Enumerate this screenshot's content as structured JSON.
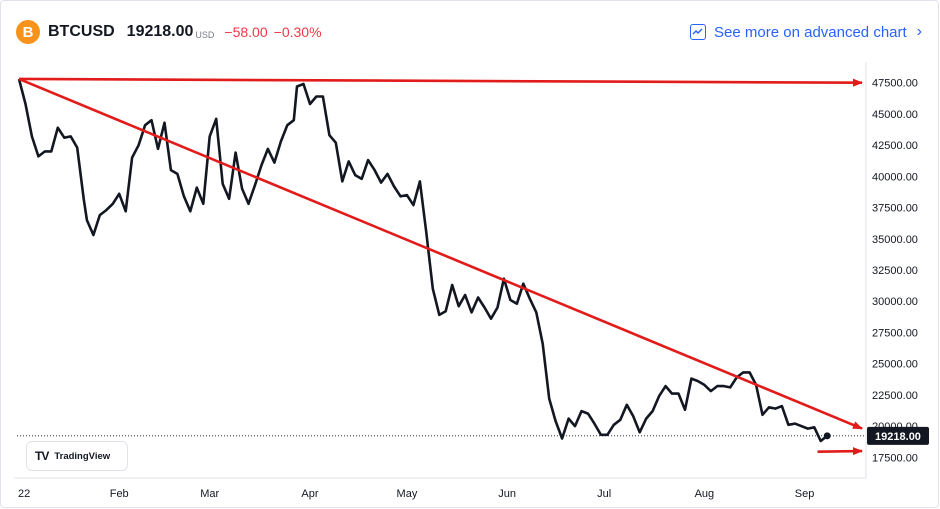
{
  "header": {
    "coin_icon_glyph": "B",
    "symbol": "BTCUSD",
    "last_price": "19218.00",
    "currency": "USD",
    "change": "−58.00",
    "change_pct": "−0.30%",
    "change_color": "#f23645"
  },
  "advanced_link": {
    "label": "See more on advanced chart",
    "icon": "chart-line-icon"
  },
  "badge": {
    "logo": "TV",
    "label": "TradingView"
  },
  "chart_data": {
    "type": "line",
    "series": [
      {
        "color": "#131722",
        "points": [
          [
            "2022-01-01",
            47800
          ],
          [
            "2022-01-03",
            45800
          ],
          [
            "2022-01-05",
            43200
          ],
          [
            "2022-01-07",
            41600
          ],
          [
            "2022-01-09",
            42000
          ],
          [
            "2022-01-11",
            42000
          ],
          [
            "2022-01-13",
            43900
          ],
          [
            "2022-01-15",
            43100
          ],
          [
            "2022-01-17",
            43200
          ],
          [
            "2022-01-19",
            42300
          ],
          [
            "2022-01-21",
            38200
          ],
          [
            "2022-01-22",
            36500
          ],
          [
            "2022-01-24",
            35300
          ],
          [
            "2022-01-26",
            36900
          ],
          [
            "2022-01-28",
            37300
          ],
          [
            "2022-01-30",
            37800
          ],
          [
            "2022-02-01",
            38600
          ],
          [
            "2022-02-03",
            37200
          ],
          [
            "2022-02-05",
            41500
          ],
          [
            "2022-02-07",
            42500
          ],
          [
            "2022-02-09",
            44100
          ],
          [
            "2022-02-11",
            44500
          ],
          [
            "2022-02-13",
            42200
          ],
          [
            "2022-02-15",
            44300
          ],
          [
            "2022-02-17",
            40500
          ],
          [
            "2022-02-19",
            40200
          ],
          [
            "2022-02-21",
            38400
          ],
          [
            "2022-02-23",
            37200
          ],
          [
            "2022-02-25",
            39100
          ],
          [
            "2022-02-27",
            37800
          ],
          [
            "2022-03-01",
            43200
          ],
          [
            "2022-03-03",
            44600
          ],
          [
            "2022-03-05",
            39400
          ],
          [
            "2022-03-07",
            38200
          ],
          [
            "2022-03-09",
            41900
          ],
          [
            "2022-03-11",
            39000
          ],
          [
            "2022-03-13",
            37800
          ],
          [
            "2022-03-15",
            39300
          ],
          [
            "2022-03-17",
            40900
          ],
          [
            "2022-03-19",
            42200
          ],
          [
            "2022-03-21",
            41100
          ],
          [
            "2022-03-23",
            42800
          ],
          [
            "2022-03-25",
            44100
          ],
          [
            "2022-03-27",
            44500
          ],
          [
            "2022-03-28",
            47200
          ],
          [
            "2022-03-30",
            47400
          ],
          [
            "2022-04-01",
            45800
          ],
          [
            "2022-04-03",
            46400
          ],
          [
            "2022-04-05",
            46400
          ],
          [
            "2022-04-07",
            43300
          ],
          [
            "2022-04-09",
            42700
          ],
          [
            "2022-04-11",
            39600
          ],
          [
            "2022-04-13",
            41200
          ],
          [
            "2022-04-15",
            40100
          ],
          [
            "2022-04-17",
            39800
          ],
          [
            "2022-04-19",
            41300
          ],
          [
            "2022-04-21",
            40500
          ],
          [
            "2022-04-23",
            39500
          ],
          [
            "2022-04-25",
            40200
          ],
          [
            "2022-04-27",
            39200
          ],
          [
            "2022-04-29",
            38400
          ],
          [
            "2022-05-01",
            38500
          ],
          [
            "2022-05-03",
            37700
          ],
          [
            "2022-05-05",
            39600
          ],
          [
            "2022-05-07",
            35500
          ],
          [
            "2022-05-09",
            31000
          ],
          [
            "2022-05-11",
            28900
          ],
          [
            "2022-05-13",
            29200
          ],
          [
            "2022-05-15",
            31300
          ],
          [
            "2022-05-17",
            29600
          ],
          [
            "2022-05-19",
            30500
          ],
          [
            "2022-05-21",
            29100
          ],
          [
            "2022-05-23",
            30300
          ],
          [
            "2022-05-25",
            29500
          ],
          [
            "2022-05-27",
            28600
          ],
          [
            "2022-05-29",
            29500
          ],
          [
            "2022-05-31",
            31800
          ],
          [
            "2022-06-02",
            30100
          ],
          [
            "2022-06-04",
            29800
          ],
          [
            "2022-06-06",
            31400
          ],
          [
            "2022-06-08",
            30200
          ],
          [
            "2022-06-10",
            29100
          ],
          [
            "2022-06-12",
            26600
          ],
          [
            "2022-06-14",
            22200
          ],
          [
            "2022-06-16",
            20400
          ],
          [
            "2022-06-18",
            19000
          ],
          [
            "2022-06-20",
            20600
          ],
          [
            "2022-06-22",
            20000
          ],
          [
            "2022-06-24",
            21200
          ],
          [
            "2022-06-26",
            21000
          ],
          [
            "2022-06-28",
            20200
          ],
          [
            "2022-06-30",
            19300
          ],
          [
            "2022-07-02",
            19300
          ],
          [
            "2022-07-04",
            20100
          ],
          [
            "2022-07-06",
            20500
          ],
          [
            "2022-07-08",
            21700
          ],
          [
            "2022-07-10",
            20800
          ],
          [
            "2022-07-12",
            19500
          ],
          [
            "2022-07-14",
            20600
          ],
          [
            "2022-07-16",
            21200
          ],
          [
            "2022-07-18",
            22400
          ],
          [
            "2022-07-20",
            23200
          ],
          [
            "2022-07-22",
            22600
          ],
          [
            "2022-07-24",
            22600
          ],
          [
            "2022-07-26",
            21300
          ],
          [
            "2022-07-28",
            23800
          ],
          [
            "2022-07-30",
            23600
          ],
          [
            "2022-08-01",
            23300
          ],
          [
            "2022-08-03",
            22800
          ],
          [
            "2022-08-05",
            23200
          ],
          [
            "2022-08-07",
            23200
          ],
          [
            "2022-08-09",
            23100
          ],
          [
            "2022-08-11",
            23900
          ],
          [
            "2022-08-13",
            24300
          ],
          [
            "2022-08-15",
            24300
          ],
          [
            "2022-08-17",
            23300
          ],
          [
            "2022-08-19",
            20900
          ],
          [
            "2022-08-21",
            21500
          ],
          [
            "2022-08-23",
            21400
          ],
          [
            "2022-08-25",
            21600
          ],
          [
            "2022-08-27",
            20100
          ],
          [
            "2022-08-29",
            20200
          ],
          [
            "2022-08-31",
            20000
          ],
          [
            "2022-09-02",
            19800
          ],
          [
            "2022-09-04",
            19900
          ],
          [
            "2022-09-06",
            18800
          ],
          [
            "2022-09-08",
            19218
          ]
        ]
      }
    ],
    "last_value": 19218.0,
    "last_value_label": "19218.00",
    "xlim": [
      "2022-01-01",
      "2022-09-20"
    ],
    "x_ticks": [
      {
        "label": "22",
        "date": "2022-01-01"
      },
      {
        "label": "Feb",
        "date": "2022-02-01"
      },
      {
        "label": "Mar",
        "date": "2022-03-01"
      },
      {
        "label": "Apr",
        "date": "2022-04-01"
      },
      {
        "label": "May",
        "date": "2022-05-01"
      },
      {
        "label": "Jun",
        "date": "2022-06-01"
      },
      {
        "label": "Jul",
        "date": "2022-07-01"
      },
      {
        "label": "Aug",
        "date": "2022-08-01"
      },
      {
        "label": "Sep",
        "date": "2022-09-01"
      }
    ],
    "y_ticks": [
      17500,
      20000,
      22500,
      25000,
      27500,
      30000,
      32500,
      35000,
      37500,
      40000,
      42500,
      45000,
      47500
    ],
    "y_tick_labels": [
      "17500.00",
      "20000.00",
      "22500.00",
      "25000.00",
      "27500.00",
      "30000.00",
      "32500.00",
      "35000.00",
      "37500.00",
      "40000.00",
      "42500.00",
      "45000.00",
      "47500.00"
    ],
    "ylim": [
      16000,
      49000
    ],
    "grid": false,
    "annotations": [
      {
        "type": "arrow",
        "color": "#e21b1b",
        "from": [
          "2022-01-01",
          47800
        ],
        "to": [
          "2022-09-20",
          47500
        ]
      },
      {
        "type": "arrow",
        "color": "#e21b1b",
        "from": [
          "2022-01-01",
          47800
        ],
        "to": [
          "2022-09-20",
          19800
        ]
      },
      {
        "type": "arrow",
        "color": "#e21b1b",
        "from": [
          "2022-09-05",
          17950
        ],
        "to": [
          "2022-09-20",
          18000
        ]
      }
    ]
  }
}
